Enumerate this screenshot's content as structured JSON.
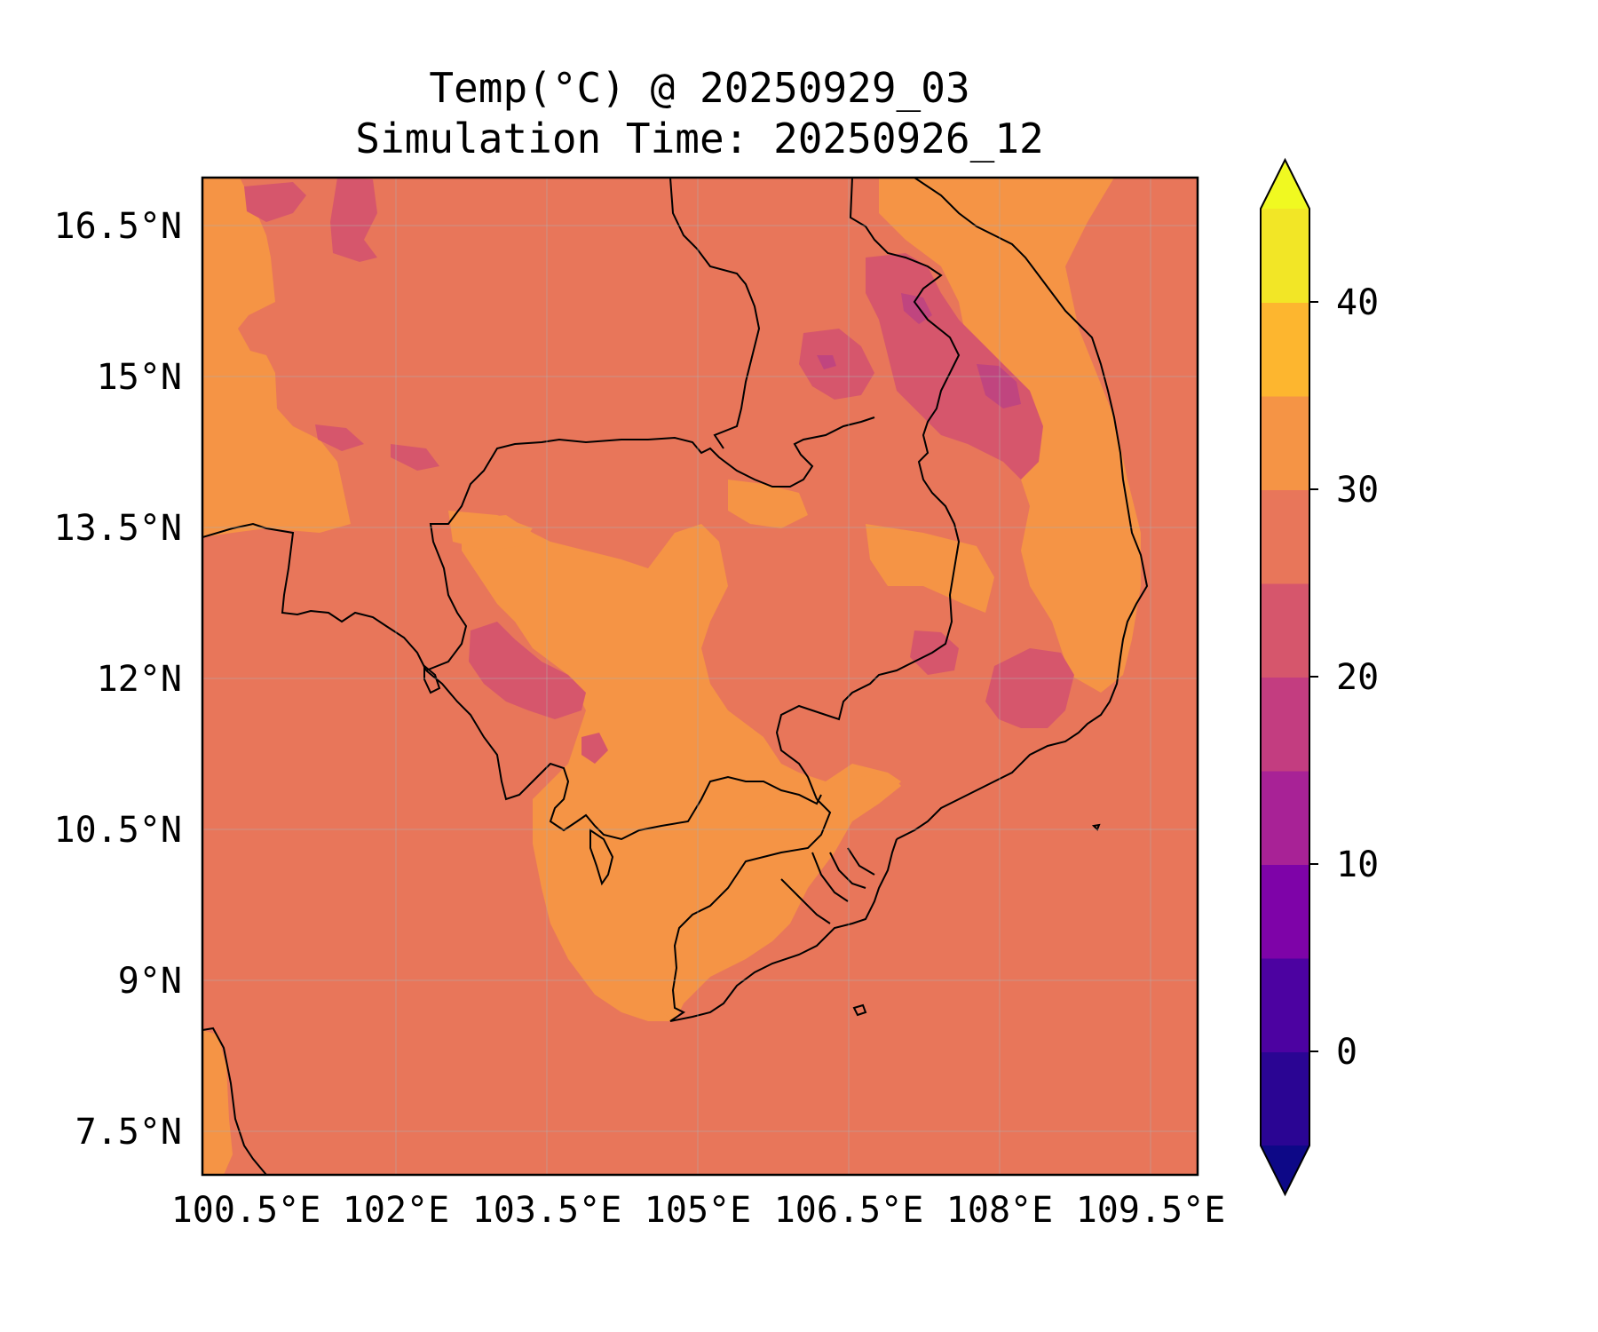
{
  "title_line1": "Temp(°C) @ 20250929_03",
  "title_line2": "Simulation Time: 20250926_12",
  "map": {
    "lon_ticks": [
      "100.5°E",
      "102°E",
      "103.5°E",
      "105°E",
      "106.5°E",
      "108°E",
      "109.5°E"
    ],
    "lat_ticks": [
      "16.5°N",
      "15°N",
      "13.5°N",
      "12°N",
      "10.5°N",
      "9°N",
      "7.5°N"
    ],
    "background_fill": "#e8765a",
    "warm_fill": "#f59445",
    "cool_fill": "#d6566c",
    "cooler_fill": "#c0457f"
  },
  "colorbar": {
    "tick_labels": [
      "40",
      "30",
      "20",
      "10",
      "0"
    ],
    "levels": [
      {
        "range": "<-5",
        "color": "#0d0887"
      },
      {
        "range": "-5–0",
        "color": "#2a0593"
      },
      {
        "range": "0–5",
        "color": "#4c02a1"
      },
      {
        "range": "5–10",
        "color": "#7e03a8"
      },
      {
        "range": "10–15",
        "color": "#a82296"
      },
      {
        "range": "15–20",
        "color": "#c33d80"
      },
      {
        "range": "20–25",
        "color": "#d6566c"
      },
      {
        "range": "25–30",
        "color": "#e8765a"
      },
      {
        "range": "30–35",
        "color": "#f59445"
      },
      {
        "range": "35–40",
        "color": "#fdb62f"
      },
      {
        "range": "40–45",
        "color": "#f2e626"
      },
      {
        "range": ">45",
        "color": "#f0f921"
      }
    ]
  }
}
